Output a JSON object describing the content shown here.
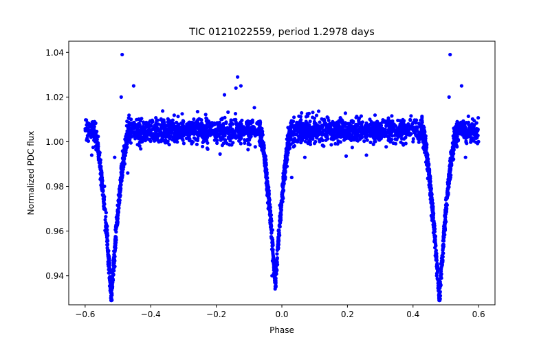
{
  "chart_data": {
    "type": "scatter",
    "title": "TIC 0121022559, period 1.2978 days",
    "xlabel": "Phase",
    "ylabel": "Normalized PDC flux",
    "xlim": [
      -0.65,
      0.65
    ],
    "ylim": [
      0.927,
      1.045
    ],
    "xticks": [
      -0.6,
      -0.4,
      -0.2,
      0.0,
      0.2,
      0.4,
      0.6
    ],
    "xtick_labels": [
      "−0.6",
      "−0.4",
      "−0.2",
      "0.0",
      "0.2",
      "0.4",
      "0.6"
    ],
    "yticks": [
      0.94,
      0.96,
      0.98,
      1.0,
      1.02,
      1.04
    ],
    "ytick_labels": [
      "0.94",
      "0.96",
      "0.98",
      "1.00",
      "1.02",
      "1.04"
    ],
    "grid": false,
    "legend": "none",
    "marker_color": "#0000ff",
    "phase_range": [
      -0.6,
      0.6
    ],
    "baseline_flux": 1.005,
    "baseline_scatter": 0.006,
    "eclipses": [
      {
        "center": -0.52,
        "min_flux": 0.93,
        "half_width": 0.055
      },
      {
        "center": -0.02,
        "min_flux": 0.936,
        "half_width": 0.05
      },
      {
        "center": 0.48,
        "min_flux": 0.93,
        "half_width": 0.055
      }
    ],
    "outliers": [
      {
        "x": -0.487,
        "y": 1.039
      },
      {
        "x": -0.49,
        "y": 1.02
      },
      {
        "x": -0.452,
        "y": 1.025
      },
      {
        "x": -0.135,
        "y": 1.029
      },
      {
        "x": -0.125,
        "y": 1.025
      },
      {
        "x": -0.14,
        "y": 1.024
      },
      {
        "x": -0.175,
        "y": 1.021
      },
      {
        "x": 0.513,
        "y": 1.039
      },
      {
        "x": 0.51,
        "y": 1.02
      },
      {
        "x": 0.548,
        "y": 1.025
      },
      {
        "x": 0.07,
        "y": 0.993
      },
      {
        "x": -0.58,
        "y": 0.994
      },
      {
        "x": -0.51,
        "y": 0.993
      },
      {
        "x": -0.47,
        "y": 0.986
      },
      {
        "x": 0.03,
        "y": 0.984
      },
      {
        "x": -0.045,
        "y": 0.976
      },
      {
        "x": -0.03,
        "y": 0.94
      },
      {
        "x": 0.4,
        "y": 1.0
      },
      {
        "x": 0.56,
        "y": 0.993
      }
    ]
  }
}
